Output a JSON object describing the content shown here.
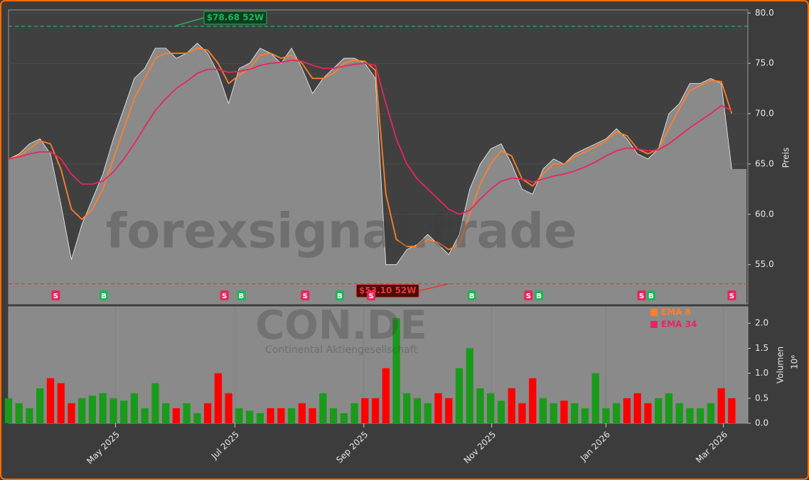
{
  "chart_data": [
    {
      "type": "area",
      "watermark": "forexsignal.trade",
      "ylabel": "Preis",
      "xlim": [
        0,
        70.4
      ],
      "ylim": [
        51.1,
        80.3
      ],
      "yticks": [
        {
          "value": 55,
          "label": "55.0"
        },
        {
          "value": 60,
          "label": "60.0"
        },
        {
          "value": 65,
          "label": "65.0"
        },
        {
          "value": 70,
          "label": "70.0"
        },
        {
          "value": 75,
          "label": "75.0"
        },
        {
          "value": 80,
          "label": "80.0"
        }
      ],
      "series": [
        {
          "color": "#f2f2f2",
          "values": [
            65.5,
            66,
            67,
            67.5,
            66,
            61,
            55.5,
            59,
            61.5,
            64,
            67.5,
            70.5,
            73.5,
            74.5,
            76.5,
            76.5,
            75.5,
            76,
            77,
            76,
            74,
            71,
            74.5,
            75,
            76.5,
            76,
            75,
            76.5,
            74.5,
            72,
            73.5,
            74.5,
            75.5,
            75.5,
            75,
            73.5,
            55,
            55,
            56.5,
            57,
            58,
            57,
            56,
            58,
            62.5,
            65,
            66.5,
            67,
            65,
            62.5,
            62,
            64.5,
            65.5,
            65,
            66,
            66.5,
            67,
            67.5,
            68.5,
            67.5,
            66,
            65.5,
            66.5,
            70,
            71,
            73,
            73,
            73.5,
            73,
            64.5
          ]
        },
        {
          "name": "EMA 8",
          "color": "#ff7f2a",
          "values": [
            65.5,
            65.8,
            66.5,
            67.3,
            67,
            64.5,
            60.5,
            59.5,
            60.5,
            62.5,
            65.5,
            68.5,
            71.5,
            73.5,
            75.5,
            76,
            76,
            76,
            76.5,
            76.3,
            75,
            73,
            73.8,
            74.5,
            75.8,
            76,
            75.5,
            75.8,
            75,
            73.5,
            73.5,
            74,
            75,
            75.3,
            75.2,
            74.3,
            62,
            57.5,
            56.8,
            56.8,
            57.5,
            57.2,
            56.5,
            57,
            60,
            63,
            65,
            66.3,
            65.8,
            63.5,
            62.8,
            64,
            65,
            65,
            65.7,
            66.2,
            66.7,
            67.3,
            68.2,
            67.8,
            66.5,
            66,
            66.5,
            68.5,
            70.5,
            72.3,
            72.8,
            73.3,
            73.2,
            70
          ]
        },
        {
          "name": "EMA 34",
          "color": "#e8255f",
          "values": [
            65.5,
            65.7,
            66,
            66.2,
            66.2,
            65.5,
            64,
            63,
            63,
            63.3,
            64.2,
            65.5,
            67,
            68.7,
            70.3,
            71.5,
            72.5,
            73.2,
            74,
            74.4,
            74.4,
            74.1,
            74.2,
            74.4,
            74.8,
            75,
            75.1,
            75.3,
            75.2,
            74.8,
            74.5,
            74.5,
            74.7,
            74.9,
            75,
            74.8,
            71,
            67.5,
            65,
            63.5,
            62.5,
            61.5,
            60.5,
            60,
            60.4,
            61.5,
            62.5,
            63.3,
            63.6,
            63.5,
            63.2,
            63.5,
            63.8,
            64,
            64.3,
            64.7,
            65.2,
            65.8,
            66.3,
            66.6,
            66.5,
            66.3,
            66.4,
            67,
            67.8,
            68.6,
            69.3,
            70,
            70.8,
            70.3
          ]
        }
      ],
      "annotations": [
        {
          "text": "$78.68 52W",
          "value": 78.68,
          "x": 15.8,
          "color": "#22b35a"
        },
        {
          "text": "$53.10 52W",
          "value": 53.1,
          "x": 42,
          "color": "#e53935"
        }
      ],
      "signals": [
        {
          "label": "S",
          "x": 4.5
        },
        {
          "label": "B",
          "x": 9.1
        },
        {
          "label": "S",
          "x": 20.6
        },
        {
          "label": "B",
          "x": 22.2
        },
        {
          "label": "S",
          "x": 28.3
        },
        {
          "label": "B",
          "x": 31.6
        },
        {
          "label": "S",
          "x": 34.6
        },
        {
          "label": "B",
          "x": 44.2
        },
        {
          "label": "S",
          "x": 49.6
        },
        {
          "label": "B",
          "x": 50.6
        },
        {
          "label": "S",
          "x": 60.4
        },
        {
          "label": "B",
          "x": 61.3
        },
        {
          "label": "S",
          "x": 69
        }
      ]
    },
    {
      "type": "bar",
      "watermark": "CON.DE",
      "subtitle": "Continental Aktiengesellschaft",
      "ylabel": "Volumen",
      "scale_label": "10⁶",
      "xlim": [
        0,
        70.4
      ],
      "ylim": [
        0,
        2.33
      ],
      "yticks": [
        {
          "value": 0,
          "label": "0.0"
        },
        {
          "value": 0.5,
          "label": "0.5"
        },
        {
          "value": 1,
          "label": "1.0"
        },
        {
          "value": 1.5,
          "label": "1.5"
        },
        {
          "value": 2,
          "label": "2.0"
        }
      ],
      "xticks": [
        {
          "value": 10.2,
          "label": "May 2025"
        },
        {
          "value": 21.6,
          "label": "Jul 2025"
        },
        {
          "value": 33.9,
          "label": "Sep 2025"
        },
        {
          "value": 46.1,
          "label": "Nov 2025"
        },
        {
          "value": 57,
          "label": "Jan 2026"
        },
        {
          "value": 68.2,
          "label": "Mar 2026"
        }
      ],
      "up_color": "#1a9a1a",
      "down_color": "#ff0000",
      "values": [
        0.5,
        0.4,
        0.3,
        0.7,
        0.9,
        0.8,
        0.4,
        0.5,
        0.55,
        0.6,
        0.5,
        0.45,
        0.6,
        0.3,
        0.8,
        0.4,
        0.3,
        0.4,
        0.2,
        0.4,
        1.0,
        0.6,
        0.3,
        0.25,
        0.2,
        0.3,
        0.3,
        0.3,
        0.4,
        0.3,
        0.6,
        0.3,
        0.2,
        0.4,
        0.5,
        0.5,
        1.1,
        2.1,
        0.6,
        0.5,
        0.4,
        0.6,
        0.5,
        1.1,
        1.5,
        0.7,
        0.6,
        0.45,
        0.7,
        0.4,
        0.9,
        0.5,
        0.4,
        0.45,
        0.4,
        0.3,
        1.0,
        0.3,
        0.4,
        0.5,
        0.6,
        0.4,
        0.5,
        0.6,
        0.4,
        0.3,
        0.3,
        0.4,
        0.7,
        0.5
      ]
    }
  ]
}
